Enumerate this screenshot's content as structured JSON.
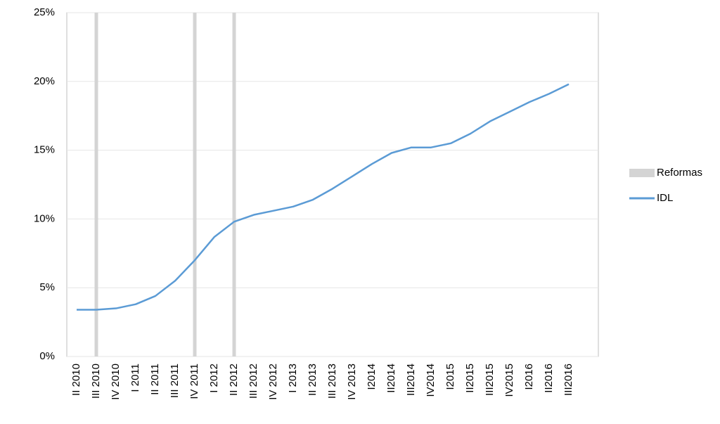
{
  "chart_data": {
    "type": "line",
    "categories": [
      "II 2010",
      "III 2010",
      "IV 2010",
      "I 2011",
      "II 2011",
      "III 2011",
      "IV 2011",
      "I 2012",
      "II 2012",
      "III 2012",
      "IV 2012",
      "I 2013",
      "II 2013",
      "III 2013",
      "IV 2013",
      "I2014",
      "II2014",
      "III2014",
      "IV2014",
      "I2015",
      "II2015",
      "III2015",
      "IV2015",
      "I2016",
      "II2016",
      "III2016"
    ],
    "series": [
      {
        "name": "Reformas",
        "type": "bar",
        "color": "#d4d4d4",
        "values": [
          null,
          25,
          null,
          null,
          null,
          null,
          25,
          null,
          25,
          null,
          null,
          null,
          null,
          null,
          null,
          null,
          null,
          null,
          null,
          null,
          null,
          null,
          null,
          null,
          null,
          null
        ]
      },
      {
        "name": "IDL",
        "type": "line",
        "color": "#5b9bd5",
        "values": [
          3.4,
          3.4,
          3.5,
          3.8,
          4.4,
          5.5,
          7.0,
          8.7,
          9.8,
          10.3,
          10.6,
          10.9,
          11.4,
          12.2,
          13.1,
          14.0,
          14.8,
          15.2,
          15.2,
          15.5,
          16.2,
          17.1,
          17.8,
          18.5,
          19.1,
          19.8
        ]
      }
    ],
    "ylim": [
      0,
      25
    ],
    "yticks": [
      {
        "value": 0,
        "label": "0%"
      },
      {
        "value": 5,
        "label": "5%"
      },
      {
        "value": 10,
        "label": "10%"
      },
      {
        "value": 15,
        "label": "15%"
      },
      {
        "value": 20,
        "label": "20%"
      },
      {
        "value": 25,
        "label": "25%"
      }
    ],
    "grid": true,
    "legend": "right"
  }
}
